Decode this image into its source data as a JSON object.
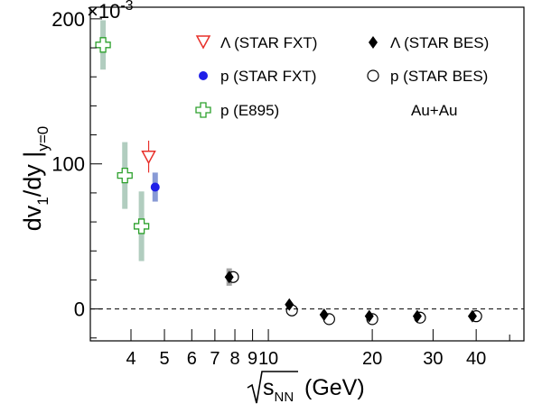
{
  "chart_data": {
    "type": "scatter",
    "title": "",
    "subtitle": "",
    "xlabel": "(GeV)",
    "xlabel_symbol": "s",
    "xlabel_subscript": "NN",
    "ylabel": "dv",
    "ylabel_sub1": "1",
    "ylabel_mid": "/dy |",
    "ylabel_sub2": "y=0",
    "y_exponent_label": "×10",
    "y_exponent": "-3",
    "x_scale": "log",
    "xlim": [
      3.05,
      55
    ],
    "ylim": [
      -0.022,
      0.208
    ],
    "x_ticks": [
      {
        "value": 4,
        "label": "4"
      },
      {
        "value": 5,
        "label": "5"
      },
      {
        "value": 6,
        "label": "6"
      },
      {
        "value": 7,
        "label": "7"
      },
      {
        "value": 8,
        "label": "8"
      },
      {
        "value": 9,
        "label": "9"
      },
      {
        "value": 10,
        "label": "10"
      },
      {
        "value": 20,
        "label": "20"
      },
      {
        "value": 30,
        "label": "30"
      },
      {
        "value": 40,
        "label": "40"
      }
    ],
    "y_ticks": [
      {
        "value": 0,
        "label": "0"
      },
      {
        "value": 0.1,
        "label": "100"
      },
      {
        "value": 0.2,
        "label": "200"
      }
    ],
    "reference_line": {
      "y": 0,
      "style": "dashed"
    },
    "grid": false,
    "legend_placement": "top-right",
    "annotation": "Au+Au",
    "series": [
      {
        "name": "Λ (STAR FXT)",
        "marker": "open-triangle-down",
        "color": "#e8302a",
        "points": [
          {
            "x": 4.5,
            "y": 0.105,
            "err": 0.011
          }
        ]
      },
      {
        "name": "p (STAR FXT)",
        "marker": "filled-circle",
        "color": "#1f1fe8",
        "sys_color": "#7b8fd0",
        "points": [
          {
            "x": 4.7,
            "y": 0.084,
            "err": 0.0,
            "sys": 0.01
          }
        ]
      },
      {
        "name": "p (E895)",
        "marker": "open-cross",
        "color": "#2ca02c",
        "sys_color": "#a8c8b8",
        "points": [
          {
            "x": 3.32,
            "y": 0.182,
            "sys": 0.017
          },
          {
            "x": 3.84,
            "y": 0.092,
            "sys": 0.023
          },
          {
            "x": 4.29,
            "y": 0.057,
            "sys": 0.024
          }
        ]
      },
      {
        "name": "Λ (STAR BES)",
        "marker": "filled-diamond",
        "color": "#000000",
        "sys_color": "#9a9a9a",
        "points": [
          {
            "x": 7.7,
            "y": 0.022,
            "sys": 0.006
          },
          {
            "x": 11.5,
            "y": 0.003,
            "sys": 0.0
          },
          {
            "x": 14.5,
            "y": -0.004,
            "sys": 0.0
          },
          {
            "x": 19.6,
            "y": -0.005,
            "sys": 0.0
          },
          {
            "x": 27.0,
            "y": -0.005,
            "sys": 0.0
          },
          {
            "x": 39.0,
            "y": -0.005,
            "sys": 0.0
          }
        ]
      },
      {
        "name": "p (STAR BES)",
        "marker": "open-circle",
        "color": "#000000",
        "points": [
          {
            "x": 7.9,
            "y": 0.022
          },
          {
            "x": 11.7,
            "y": -0.001
          },
          {
            "x": 15.0,
            "y": -0.007
          },
          {
            "x": 20.0,
            "y": -0.007
          },
          {
            "x": 27.5,
            "y": -0.006
          },
          {
            "x": 40.0,
            "y": -0.005
          }
        ]
      }
    ]
  }
}
